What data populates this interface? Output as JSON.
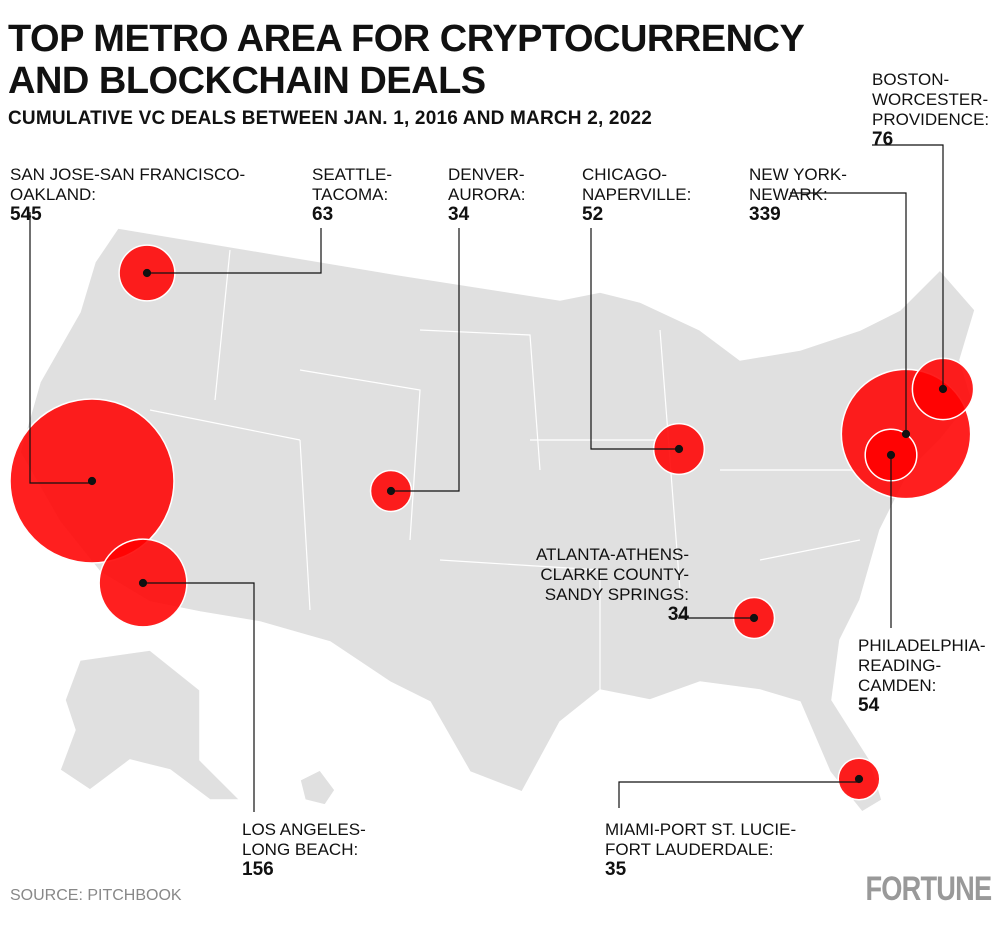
{
  "title_line1": "TOP METRO AREA FOR CRYPTOCURRENCY",
  "title_line2": "AND BLOCKCHAIN DEALS",
  "subtitle": "CUMULATIVE VC DEALS BETWEEN JAN. 1, 2016 AND MARCH 2, 2022",
  "source": "SOURCE: PITCHBOOK",
  "logo": "FORTUNE",
  "colors": {
    "bubble": "#ff0000",
    "map": "#e0e0e0",
    "border": "#ffffff"
  },
  "chart_data": {
    "type": "bubble-map",
    "region": "United States",
    "metros": [
      {
        "name": "SAN JOSE-SAN FRANCISCO-OAKLAND:",
        "deals": 545
      },
      {
        "name": "SEATTLE-TACOMA:",
        "deals": 63
      },
      {
        "name": "DENVER-AURORA:",
        "deals": 34
      },
      {
        "name": "CHICAGO-NAPERVILLE:",
        "deals": 52
      },
      {
        "name": "NEW YORK-NEWARK:",
        "deals": 339
      },
      {
        "name": "BOSTON-WORCESTER-PROVIDENCE:",
        "deals": 76
      },
      {
        "name": "LOS ANGELES-LONG BEACH:",
        "deals": 156
      },
      {
        "name": "ATLANTA-ATHENS-CLARKE COUNTY-SANDY SPRINGS:",
        "deals": 34
      },
      {
        "name": "PHILADELPHIA-READING-CAMDEN:",
        "deals": 54
      },
      {
        "name": "MIAMI-PORT ST. LUCIE-FORT LAUDERDALE:",
        "deals": 35
      }
    ]
  }
}
